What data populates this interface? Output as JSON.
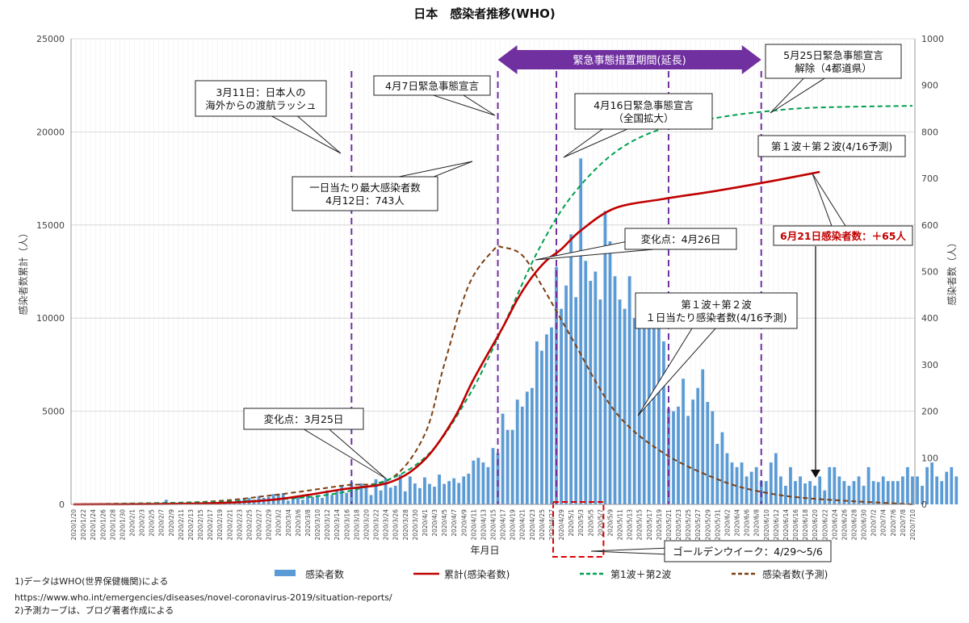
{
  "chart_data": {
    "type": "bar",
    "title": "日本　感染者推移(WHO)",
    "xlabel": "年月日",
    "ylabel_left": "感染者数累計（人）",
    "ylabel_right": "感染者数（人）",
    "ylim_left": [
      0,
      25000
    ],
    "ylim_right": [
      0,
      1000
    ],
    "yticks_left": [
      "0",
      "5000",
      "10000",
      "15000",
      "20000",
      "25000"
    ],
    "yticks_right": [
      "0",
      "100",
      "200",
      "300",
      "400",
      "500",
      "600",
      "700",
      "800",
      "900",
      "1000"
    ],
    "x_start": "2020/1/20",
    "x_end": "2020/7/10",
    "x_tick_labels": [
      "2020/1/20",
      "2020/1/22",
      "2020/1/24",
      "2020/1/26",
      "2020/1/28",
      "2020/1/30",
      "2020/2/1",
      "2020/2/3",
      "2020/2/5",
      "2020/2/7",
      "2020/2/9",
      "2020/2/11",
      "2020/2/13",
      "2020/2/15",
      "2020/2/17",
      "2020/2/19",
      "2020/2/21",
      "2020/2/23",
      "2020/2/25",
      "2020/2/27",
      "2020/2/29",
      "2020/3/2",
      "2020/3/4",
      "2020/3/6",
      "2020/3/8",
      "2020/3/10",
      "2020/3/12",
      "2020/3/14",
      "2020/3/16",
      "2020/3/18",
      "2020/3/20",
      "2020/3/22",
      "2020/3/24",
      "2020/3/26",
      "2020/3/28",
      "2020/3/30",
      "2020/4/1",
      "2020/4/3",
      "2020/4/5",
      "2020/4/7",
      "2020/4/9",
      "2020/4/11",
      "2020/4/13",
      "2020/4/15",
      "2020/4/17",
      "2020/4/19",
      "2020/4/21",
      "2020/4/23",
      "2020/4/25",
      "2020/4/27",
      "2020/4/29",
      "2020/5/1",
      "2020/5/3",
      "2020/5/5",
      "2020/5/7",
      "2020/5/9",
      "2020/5/11",
      "2020/5/13",
      "2020/5/15",
      "2020/5/17",
      "2020/5/19",
      "2020/5/21",
      "2020/5/23",
      "2020/5/25",
      "2020/5/27",
      "2020/5/29",
      "2020/5/31",
      "2020/6/2",
      "2020/6/4",
      "2020/6/6",
      "2020/6/8",
      "2020/6/10",
      "2020/6/12",
      "2020/6/14",
      "2020/6/16",
      "2020/6/18",
      "2020/6/20",
      "2020/6/22",
      "2020/6/24",
      "2020/6/26",
      "2020/6/28",
      "2020/6/30",
      "2020/7/2",
      "2020/7/4",
      "2020/7/6",
      "2020/7/8",
      "2020/7/10"
    ],
    "daily_cases_axis": "right",
    "daily_cases": [
      0,
      0,
      0,
      0,
      0,
      0,
      0,
      0,
      0,
      0,
      0,
      0,
      0,
      0,
      0,
      0,
      0,
      0,
      0,
      10,
      0,
      0,
      0,
      0,
      0,
      0,
      1,
      1,
      3,
      0,
      4,
      6,
      8,
      5,
      10,
      12,
      14,
      9,
      18,
      14,
      16,
      22,
      20,
      24,
      8,
      14,
      18,
      10,
      22,
      16,
      20,
      14,
      30,
      20,
      32,
      40,
      25,
      48,
      32,
      45,
      37,
      20,
      54,
      30,
      56,
      36,
      40,
      64,
      28,
      60,
      45,
      35,
      58,
      44,
      38,
      64,
      44,
      50,
      56,
      46,
      60,
      66,
      94,
      100,
      90,
      80,
      121,
      110,
      195,
      160,
      160,
      225,
      210,
      242,
      250,
      350,
      330,
      365,
      380,
      510,
      420,
      470,
      580,
      445,
      743,
      523,
      480,
      500,
      440,
      630,
      565,
      490,
      440,
      420,
      490,
      400,
      450,
      380,
      400,
      440,
      390,
      350,
      206,
      200,
      210,
      270,
      190,
      225,
      250,
      290,
      220,
      200,
      130,
      155,
      110,
      90,
      80,
      90,
      60,
      70,
      80,
      50,
      50,
      90,
      110,
      60,
      40,
      80,
      50,
      60,
      45,
      50,
      40,
      60,
      30,
      80,
      80,
      60,
      50,
      40,
      50,
      60,
      40,
      80,
      50,
      48,
      60,
      50,
      50,
      50,
      60,
      80,
      60,
      60,
      40,
      80,
      90,
      60,
      50,
      70,
      80,
      60
    ],
    "cumulative_axis": "left",
    "cumulative_points": [
      [
        "2020/1/20",
        0
      ],
      [
        "2020/2/15",
        50
      ],
      [
        "2020/3/1",
        250
      ],
      [
        "2020/3/15",
        800
      ],
      [
        "2020/3/25",
        1200
      ],
      [
        "2020/4/1",
        2400
      ],
      [
        "2020/4/7",
        4600
      ],
      [
        "2020/4/11",
        6700
      ],
      [
        "2020/4/17",
        9500
      ],
      [
        "2020/4/20",
        11000
      ],
      [
        "2020/4/23",
        12200
      ],
      [
        "2020/4/26",
        13100
      ],
      [
        "2020/4/29",
        13700
      ],
      [
        "2020/5/3",
        14700
      ],
      [
        "2020/5/10",
        15900
      ],
      [
        "2020/5/20",
        16400
      ],
      [
        "2020/5/30",
        16800
      ],
      [
        "2020/6/10",
        17300
      ],
      [
        "2020/6/21",
        17850
      ]
    ],
    "forecast_cumulative_axis": "left",
    "forecast_cumulative_points": [
      [
        "2020/1/20",
        0
      ],
      [
        "2020/3/1",
        250
      ],
      [
        "2020/3/20",
        950
      ],
      [
        "2020/4/1",
        2500
      ],
      [
        "2020/4/10",
        5800
      ],
      [
        "2020/4/17",
        9500
      ],
      [
        "2020/4/24",
        13500
      ],
      [
        "2020/5/1",
        16500
      ],
      [
        "2020/5/10",
        18900
      ],
      [
        "2020/5/20",
        20200
      ],
      [
        "2020/6/1",
        20800
      ],
      [
        "2020/6/10",
        21100
      ],
      [
        "2020/6/20",
        21300
      ],
      [
        "2020/7/10",
        21400
      ]
    ],
    "forecast_daily_axis": "right",
    "forecast_daily_points": [
      [
        "2020/1/20",
        0
      ],
      [
        "2020/2/15",
        5
      ],
      [
        "2020/3/1",
        20
      ],
      [
        "2020/3/15",
        40
      ],
      [
        "2020/3/25",
        55
      ],
      [
        "2020/4/1",
        150
      ],
      [
        "2020/4/5",
        300
      ],
      [
        "2020/4/10",
        470
      ],
      [
        "2020/4/15",
        545
      ],
      [
        "2020/4/17",
        552
      ],
      [
        "2020/4/21",
        535
      ],
      [
        "2020/4/25",
        470
      ],
      [
        "2020/5/1",
        360
      ],
      [
        "2020/5/10",
        200
      ],
      [
        "2020/5/20",
        110
      ],
      [
        "2020/6/1",
        50
      ],
      [
        "2020/6/10",
        25
      ],
      [
        "2020/6/20",
        12
      ],
      [
        "2020/7/10",
        0
      ]
    ],
    "event_lines": [
      "2020/3/17",
      "2020/4/16",
      "2020/4/28",
      "2020/5/21",
      "2020/6/9"
    ],
    "emergency_period": {
      "label": "緊急事態措置期間(延長)",
      "from": "2020/4/16",
      "to": "2020/6/9"
    },
    "golden_week_box": {
      "from": "2020/4/28",
      "to": "2020/5/7"
    },
    "annotations": [
      {
        "text": [
          "3月11日：日本人の",
          "海外からの渡航ラッシュ"
        ],
        "points_to": "2020/3/17"
      },
      {
        "text": [
          "4月7日緊急事態宣言"
        ],
        "points_to": "2020/4/16"
      },
      {
        "text": [
          "4月16日緊急事態宣言",
          "（全国拡大）"
        ],
        "points_to": "2020/4/28"
      },
      {
        "text": [
          "5月25日緊急事態宣言",
          "解除（4都道県）"
        ],
        "points_to": "2020/6/9"
      },
      {
        "text": [
          "一日当たり最大感染者数",
          "4月12日：743人"
        ],
        "points_to": "2020/4/12"
      },
      {
        "text": [
          "変化点：4月26日"
        ],
        "points_to": "2020/4/26"
      },
      {
        "text": [
          "変化点：3月25日"
        ],
        "points_to": "2020/3/25"
      },
      {
        "text": [
          "第１波＋第２波(4/16予測)"
        ],
        "points_to": "2020/6/19"
      },
      {
        "text": [
          "第１波＋第２波",
          "１日当たり感染者数(4/16予測)"
        ],
        "points_to": "2020/5/11"
      },
      {
        "text": [
          "ゴールデンウイーク：4/29〜5/6"
        ],
        "points_to": "2020/5/6"
      },
      {
        "text": [
          "6月21日感染者数：＋65人"
        ],
        "points_to": "2020/6/21",
        "color": "#c00000"
      }
    ],
    "legend": [
      {
        "name": "感染者数",
        "color": "#5b9bd5",
        "style": "bar"
      },
      {
        "name": "累計(感染者数)",
        "color": "#c00000",
        "style": "solid"
      },
      {
        "name": "第1波＋第2波",
        "color": "#00a050",
        "style": "dashed"
      },
      {
        "name": "感染者数(予測)",
        "color": "#7b3f12",
        "style": "dashed"
      }
    ],
    "legend_placement": "bottom",
    "colors": {
      "bars": "#5b9bd5",
      "cumulative": "#c00000",
      "forecast_cumulative": "#00a050",
      "forecast_daily": "#7b3f12",
      "event_line": "#7030a0",
      "emergency_arrow": "#7030a0"
    },
    "grid": true
  },
  "notes": [
    "1)データはWHO(世界保健機関)による",
    "https://www.who.int/emergencies/diseases/novel-coronavirus-2019/situation-reports/",
    "2)予測カーブは、ブログ著者作成による"
  ]
}
